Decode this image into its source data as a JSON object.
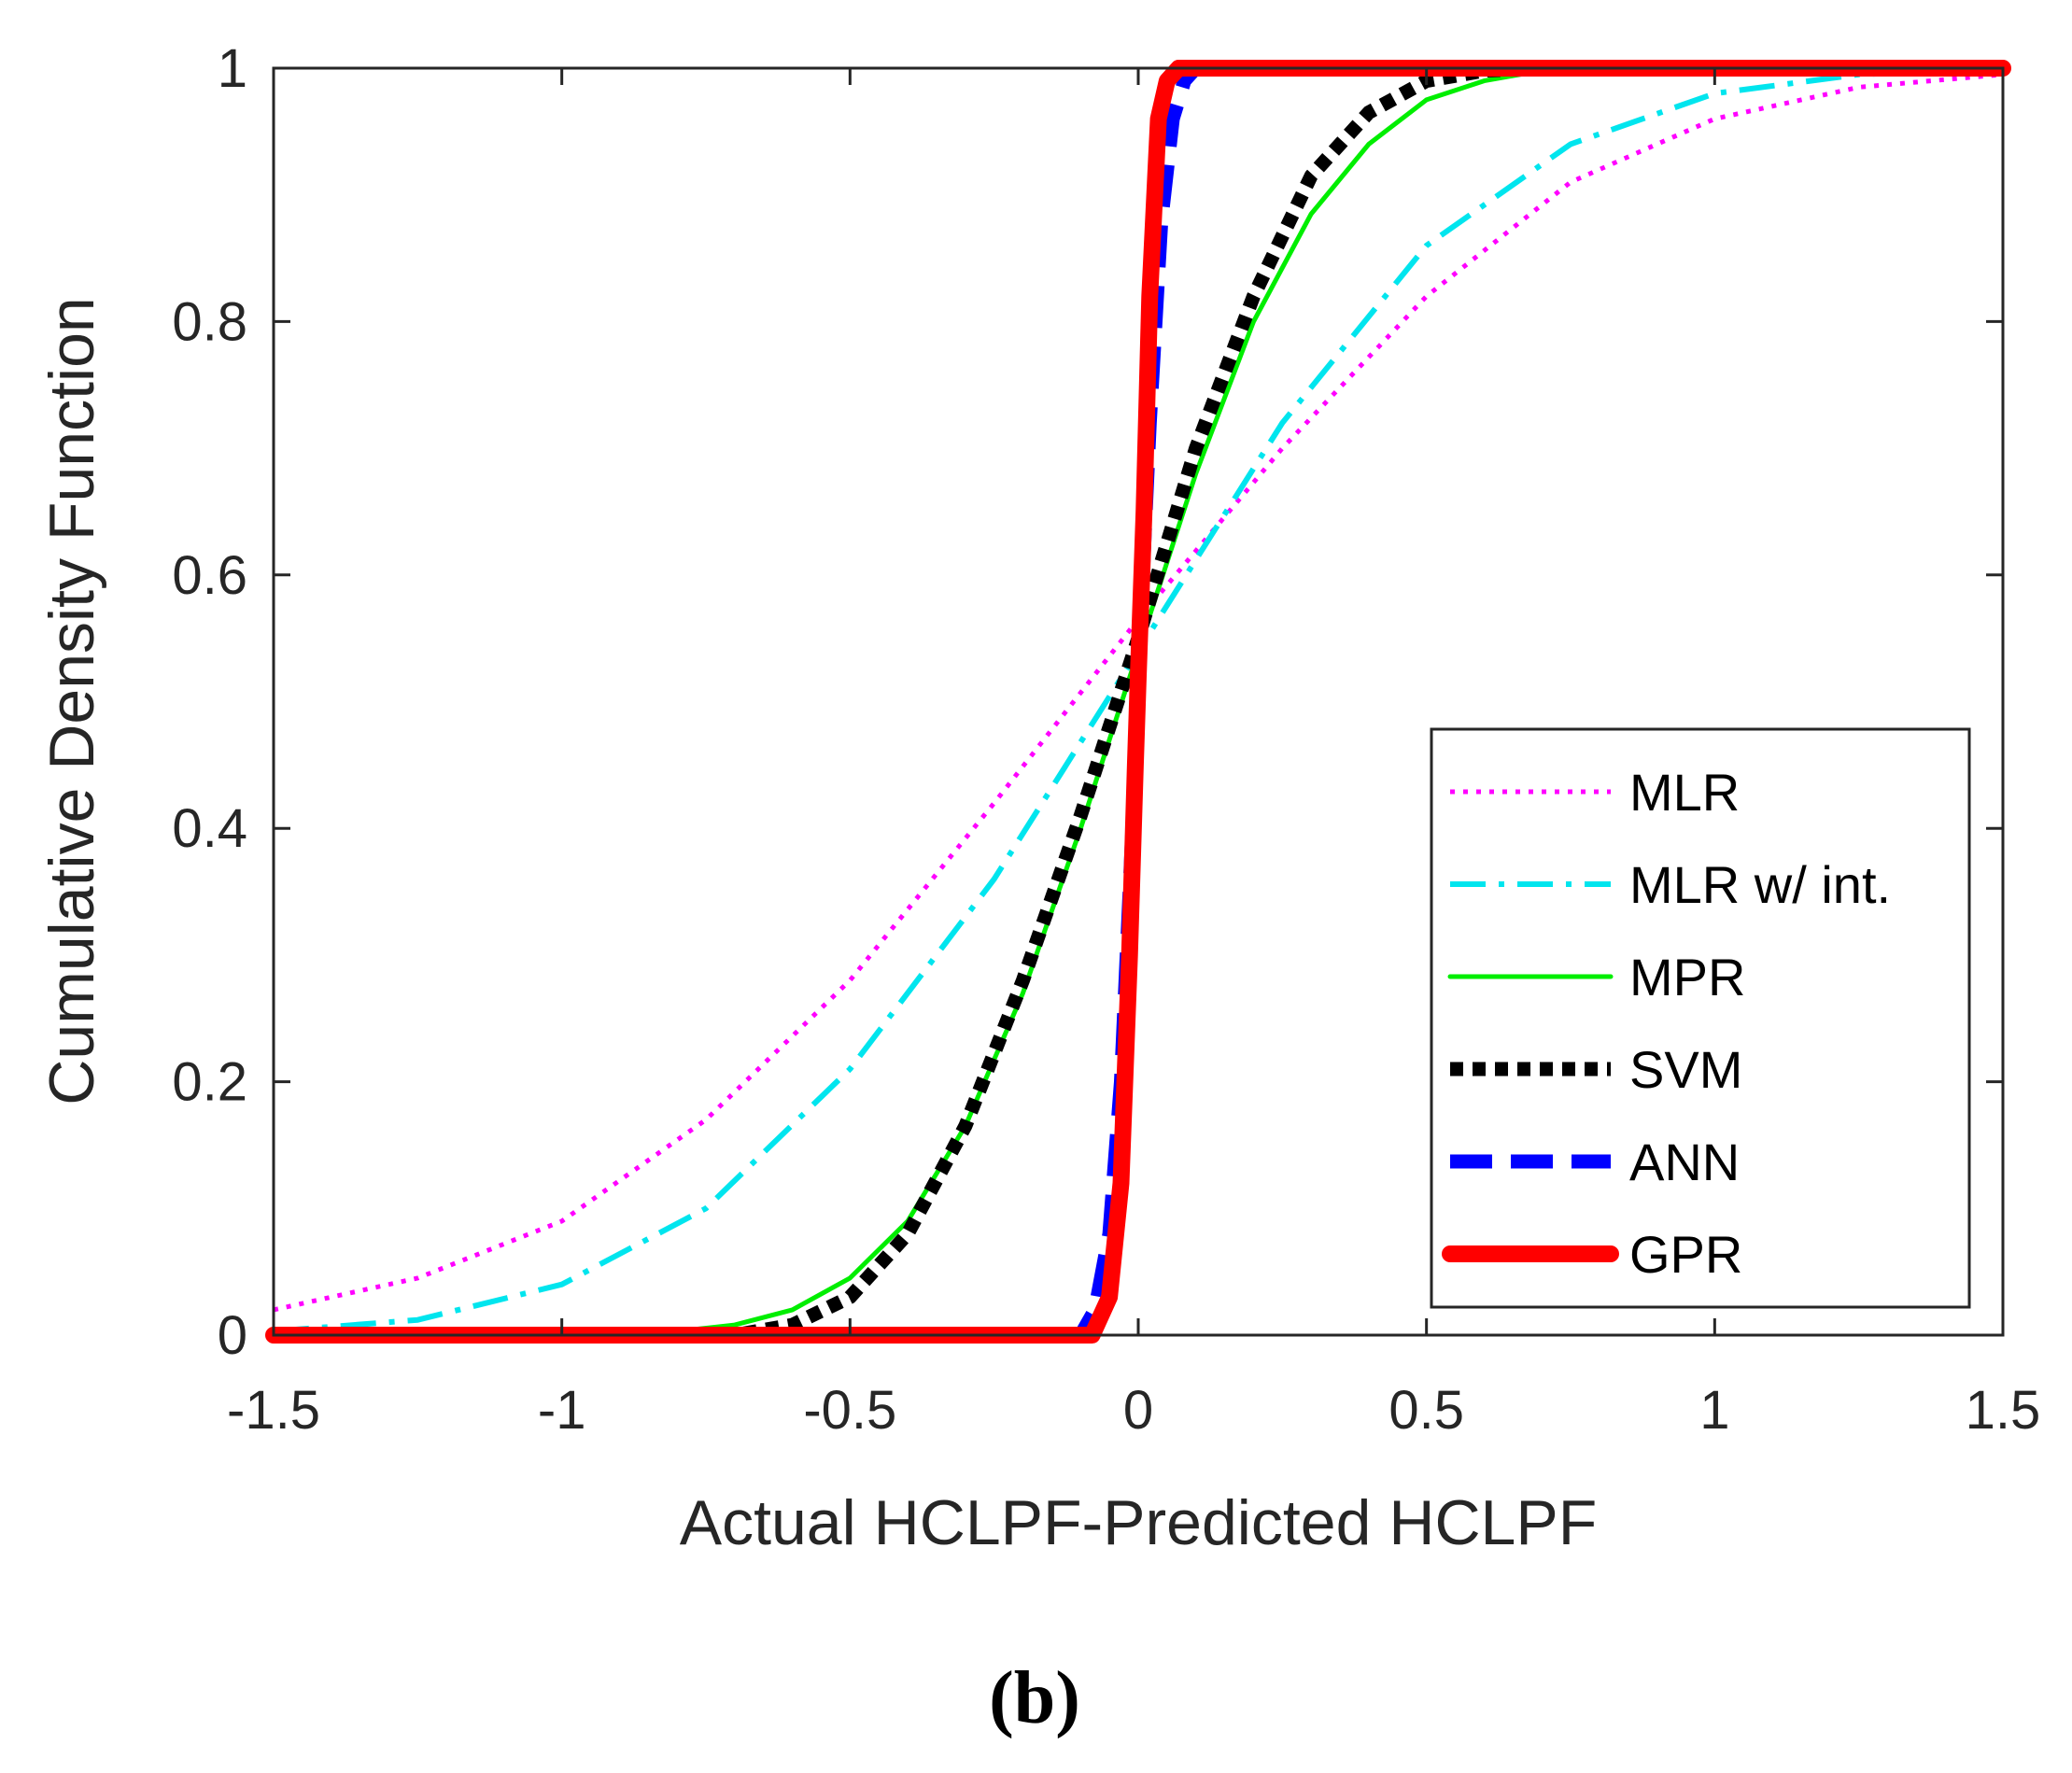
{
  "chart_data": {
    "type": "line",
    "title": "",
    "xlabel": "Actual HCLPF-Predicted HCLPF",
    "ylabel": "Cumulative Density Function",
    "xlim": [
      -1.5,
      1.5
    ],
    "ylim": [
      0,
      1
    ],
    "xticks": [
      -1.5,
      -1,
      -0.5,
      0,
      0.5,
      1,
      1.5
    ],
    "xtick_labels": [
      "-1.5",
      "-1",
      "-0.5",
      "0",
      "0.5",
      "1",
      "1.5"
    ],
    "yticks": [
      0,
      0.2,
      0.4,
      0.6,
      0.8,
      1
    ],
    "ytick_labels": [
      "0",
      "0.2",
      "0.4",
      "0.6",
      "0.8",
      "1"
    ],
    "grid": false,
    "legend_position": "bottom-right",
    "caption": "(b)",
    "series": [
      {
        "name": "MLR",
        "color": "#ff00ff",
        "style": "dotted",
        "x": [
          -1.5,
          -1.25,
          -1.0,
          -0.75,
          -0.5,
          -0.25,
          0.0,
          0.25,
          0.5,
          0.75,
          1.0,
          1.25,
          1.5
        ],
        "y": [
          0.02,
          0.045,
          0.09,
          0.17,
          0.28,
          0.42,
          0.565,
          0.7,
          0.82,
          0.91,
          0.96,
          0.985,
          0.995
        ]
      },
      {
        "name": "MLR w/ int.",
        "color": "#00e5ee",
        "style": "dashdot",
        "x": [
          -1.5,
          -1.25,
          -1.0,
          -0.75,
          -0.5,
          -0.25,
          0.0,
          0.25,
          0.5,
          0.75,
          1.0,
          1.25,
          1.5
        ],
        "y": [
          0.003,
          0.012,
          0.04,
          0.1,
          0.21,
          0.36,
          0.54,
          0.72,
          0.86,
          0.94,
          0.98,
          0.995,
          1.0
        ]
      },
      {
        "name": "MPR",
        "color": "#00ee00",
        "style": "solid",
        "x": [
          -1.5,
          -1.0,
          -0.8,
          -0.7,
          -0.6,
          -0.5,
          -0.4,
          -0.3,
          -0.2,
          -0.1,
          0.0,
          0.1,
          0.2,
          0.3,
          0.4,
          0.5,
          0.6,
          0.7,
          1.0,
          1.5
        ],
        "y": [
          0.0,
          0.0,
          0.003,
          0.008,
          0.02,
          0.045,
          0.09,
          0.165,
          0.27,
          0.4,
          0.54,
          0.68,
          0.8,
          0.885,
          0.94,
          0.975,
          0.99,
          0.998,
          1.0,
          1.0
        ]
      },
      {
        "name": "SVM",
        "color": "#000000",
        "style": "dotted-bold",
        "x": [
          -1.5,
          -0.7,
          -0.6,
          -0.5,
          -0.4,
          -0.3,
          -0.2,
          -0.1,
          0.0,
          0.1,
          0.2,
          0.3,
          0.4,
          0.5,
          0.6,
          0.7,
          1.0,
          1.5
        ],
        "y": [
          0.0,
          0.0,
          0.008,
          0.03,
          0.08,
          0.165,
          0.28,
          0.41,
          0.55,
          0.7,
          0.82,
          0.915,
          0.965,
          0.99,
          0.998,
          1.0,
          1.0,
          1.0
        ]
      },
      {
        "name": "ANN",
        "color": "#0000ff",
        "style": "dashed",
        "x": [
          -1.5,
          -0.1,
          -0.075,
          -0.05,
          -0.03,
          -0.01,
          0.0,
          0.02,
          0.04,
          0.06,
          0.08,
          0.1,
          1.5
        ],
        "y": [
          0.0,
          0.0,
          0.02,
          0.08,
          0.2,
          0.4,
          0.52,
          0.72,
          0.88,
          0.96,
          0.99,
          1.0,
          1.0
        ]
      },
      {
        "name": "GPR",
        "color": "#ff0000",
        "style": "solid-bold",
        "x": [
          -1.5,
          -0.08,
          -0.05,
          -0.03,
          -0.015,
          -0.005,
          0.0,
          0.01,
          0.02,
          0.035,
          0.05,
          0.07,
          1.5
        ],
        "y": [
          0.0,
          0.0,
          0.03,
          0.12,
          0.3,
          0.45,
          0.52,
          0.65,
          0.82,
          0.96,
          0.99,
          1.0,
          1.0
        ]
      }
    ]
  }
}
